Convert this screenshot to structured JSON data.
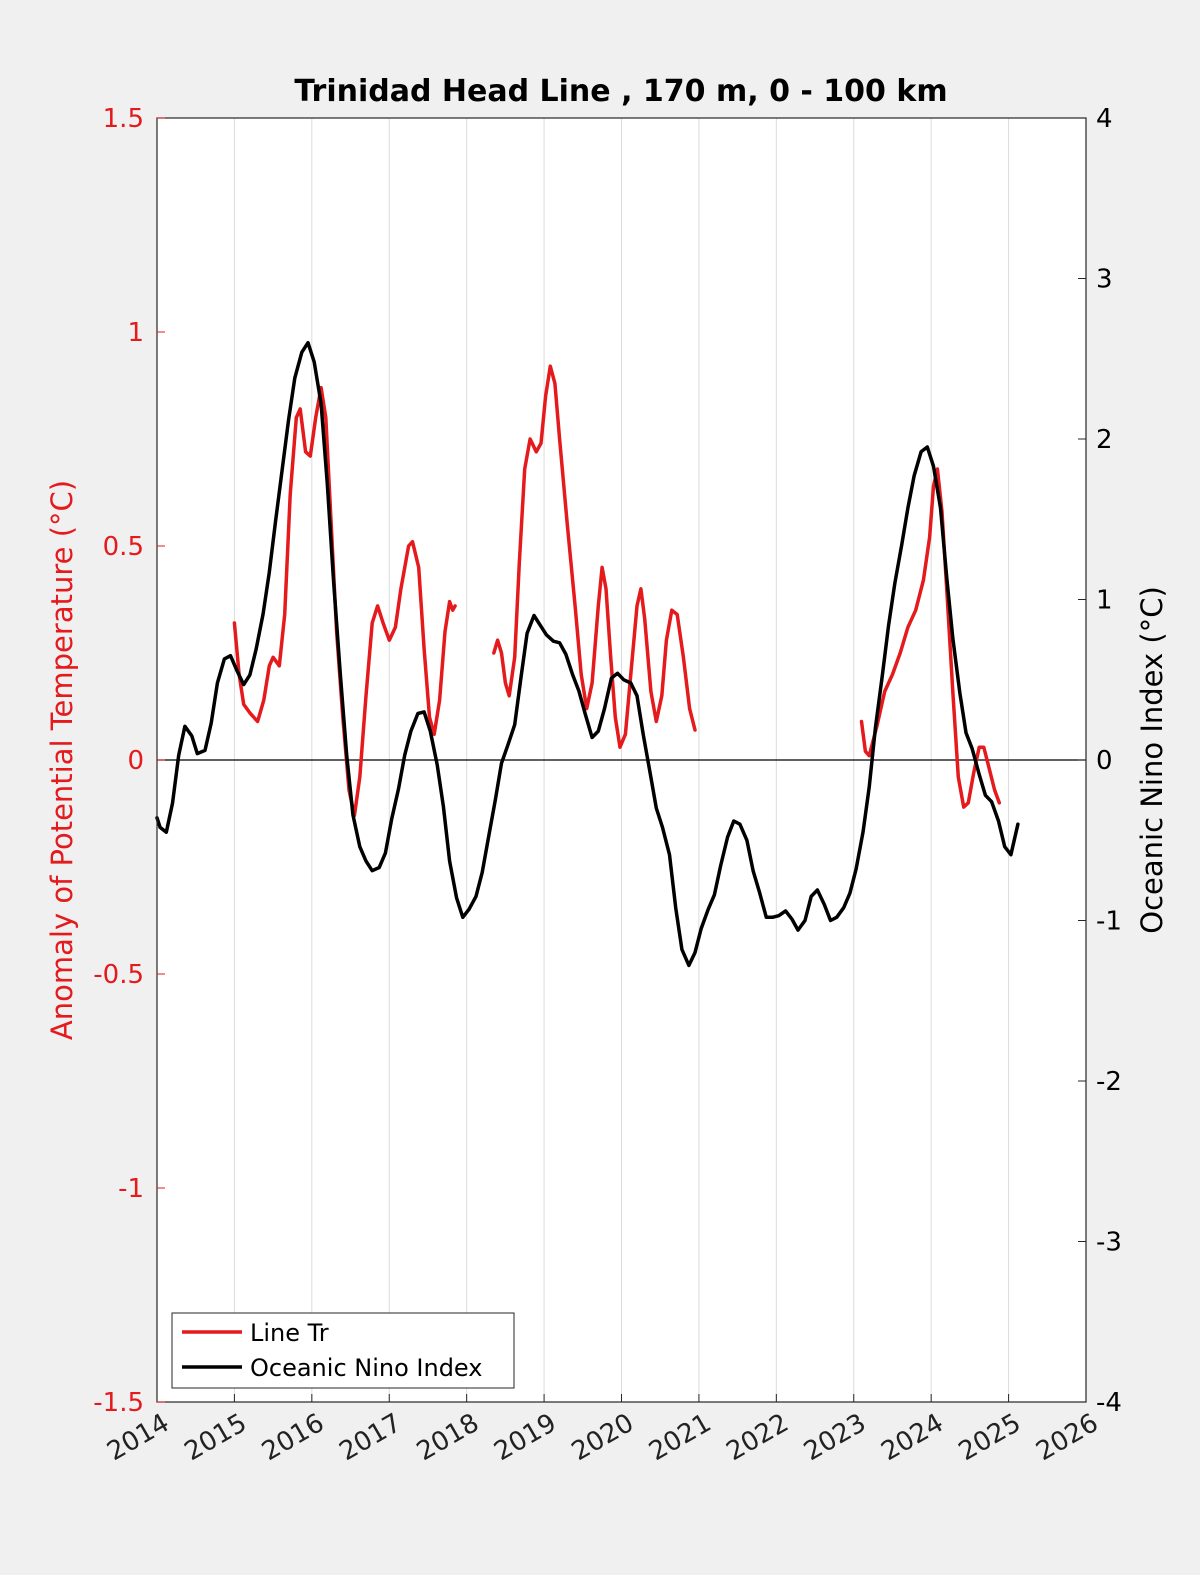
{
  "chart_data": {
    "type": "line",
    "title": "Trinidad Head Line , 170 m, 0 - 100 km",
    "ylabel_left": "Anomaly of Potential Temperature (°C)",
    "ylabel_right": "Oceanic Nino Index (°C)",
    "xlabel": "",
    "xlim": [
      2014,
      2026
    ],
    "ylim_left": [
      -1.5,
      1.5
    ],
    "ylim_right": [
      -4,
      4
    ],
    "x_ticks": [
      "2014",
      "2015",
      "2016",
      "2017",
      "2018",
      "2019",
      "2020",
      "2021",
      "2022",
      "2023",
      "2024",
      "2025",
      "2026"
    ],
    "y_ticks_left": [
      "-1.5",
      "-1",
      "-0.5",
      "0",
      "0.5",
      "1",
      "1.5"
    ],
    "y_ticks_right": [
      "-4",
      "-3",
      "-2",
      "-1",
      "0",
      "1",
      "2",
      "3",
      "4"
    ],
    "grid": "vertical",
    "zero_line": true,
    "legend_position": "bottom-left",
    "colors": {
      "line_tr": "#e41a1c",
      "oni": "#000000",
      "left_axis": "#e41a1c",
      "right_axis": "#000000"
    },
    "series": [
      {
        "name": "Line Tr",
        "axis": "left",
        "segments": [
          [
            [
              2015.0,
              0.32
            ],
            [
              2015.06,
              0.2
            ],
            [
              2015.12,
              0.13
            ],
            [
              2015.2,
              0.11
            ],
            [
              2015.3,
              0.09
            ],
            [
              2015.38,
              0.14
            ],
            [
              2015.45,
              0.22
            ],
            [
              2015.5,
              0.24
            ],
            [
              2015.58,
              0.22
            ],
            [
              2015.65,
              0.34
            ],
            [
              2015.72,
              0.62
            ],
            [
              2015.8,
              0.8
            ],
            [
              2015.85,
              0.82
            ],
            [
              2015.92,
              0.72
            ],
            [
              2015.98,
              0.71
            ],
            [
              2016.05,
              0.8
            ],
            [
              2016.12,
              0.87
            ],
            [
              2016.18,
              0.8
            ],
            [
              2016.25,
              0.55
            ],
            [
              2016.32,
              0.3
            ],
            [
              2016.4,
              0.1
            ],
            [
              2016.48,
              -0.07
            ],
            [
              2016.55,
              -0.13
            ],
            [
              2016.62,
              -0.04
            ],
            [
              2016.7,
              0.15
            ],
            [
              2016.78,
              0.32
            ],
            [
              2016.85,
              0.36
            ],
            [
              2016.92,
              0.32
            ],
            [
              2017.0,
              0.28
            ],
            [
              2017.08,
              0.31
            ],
            [
              2017.15,
              0.4
            ],
            [
              2017.25,
              0.5
            ],
            [
              2017.3,
              0.51
            ],
            [
              2017.38,
              0.45
            ],
            [
              2017.45,
              0.26
            ],
            [
              2017.52,
              0.1
            ],
            [
              2017.58,
              0.06
            ],
            [
              2017.65,
              0.14
            ],
            [
              2017.72,
              0.3
            ],
            [
              2017.78,
              0.37
            ],
            [
              2017.82,
              0.35
            ],
            [
              2017.85,
              0.36
            ]
          ],
          [
            [
              2018.35,
              0.25
            ],
            [
              2018.4,
              0.28
            ],
            [
              2018.45,
              0.25
            ],
            [
              2018.5,
              0.18
            ],
            [
              2018.55,
              0.15
            ],
            [
              2018.62,
              0.24
            ],
            [
              2018.68,
              0.46
            ],
            [
              2018.75,
              0.68
            ],
            [
              2018.82,
              0.75
            ],
            [
              2018.9,
              0.72
            ],
            [
              2018.96,
              0.74
            ],
            [
              2019.02,
              0.85
            ],
            [
              2019.08,
              0.92
            ],
            [
              2019.14,
              0.88
            ],
            [
              2019.2,
              0.75
            ],
            [
              2019.3,
              0.55
            ],
            [
              2019.4,
              0.36
            ],
            [
              2019.48,
              0.2
            ],
            [
              2019.55,
              0.12
            ],
            [
              2019.62,
              0.18
            ],
            [
              2019.7,
              0.36
            ],
            [
              2019.75,
              0.45
            ],
            [
              2019.8,
              0.4
            ],
            [
              2019.86,
              0.24
            ],
            [
              2019.92,
              0.1
            ],
            [
              2019.98,
              0.03
            ],
            [
              2020.05,
              0.06
            ],
            [
              2020.12,
              0.2
            ],
            [
              2020.2,
              0.36
            ],
            [
              2020.25,
              0.4
            ],
            [
              2020.3,
              0.33
            ],
            [
              2020.38,
              0.16
            ],
            [
              2020.45,
              0.09
            ],
            [
              2020.52,
              0.15
            ],
            [
              2020.58,
              0.28
            ],
            [
              2020.65,
              0.35
            ],
            [
              2020.72,
              0.34
            ],
            [
              2020.8,
              0.24
            ],
            [
              2020.88,
              0.12
            ],
            [
              2020.95,
              0.07
            ]
          ],
          [
            [
              2023.1,
              0.09
            ],
            [
              2023.15,
              0.02
            ],
            [
              2023.2,
              0.01
            ],
            [
              2023.3,
              0.08
            ],
            [
              2023.4,
              0.16
            ],
            [
              2023.5,
              0.2
            ],
            [
              2023.6,
              0.25
            ],
            [
              2023.7,
              0.31
            ],
            [
              2023.8,
              0.35
            ],
            [
              2023.9,
              0.42
            ],
            [
              2023.98,
              0.52
            ],
            [
              2024.03,
              0.64
            ],
            [
              2024.08,
              0.68
            ],
            [
              2024.14,
              0.58
            ],
            [
              2024.2,
              0.4
            ],
            [
              2024.28,
              0.16
            ],
            [
              2024.35,
              -0.04
            ],
            [
              2024.42,
              -0.11
            ],
            [
              2024.48,
              -0.1
            ],
            [
              2024.55,
              -0.03
            ],
            [
              2024.62,
              0.03
            ],
            [
              2024.68,
              0.03
            ],
            [
              2024.75,
              -0.02
            ],
            [
              2024.82,
              -0.07
            ],
            [
              2024.88,
              -0.1
            ]
          ]
        ]
      },
      {
        "name": "Oceanic Nino Index",
        "axis": "right",
        "segments": [
          [
            [
              2014.0,
              -0.36
            ],
            [
              2014.04,
              -0.42
            ],
            [
              2014.12,
              -0.45
            ],
            [
              2014.2,
              -0.27
            ],
            [
              2014.28,
              0.03
            ],
            [
              2014.36,
              0.21
            ],
            [
              2014.45,
              0.15
            ],
            [
              2014.52,
              0.04
            ],
            [
              2014.62,
              0.06
            ],
            [
              2014.7,
              0.23
            ],
            [
              2014.78,
              0.48
            ],
            [
              2014.87,
              0.63
            ],
            [
              2014.95,
              0.65
            ],
            [
              2015.03,
              0.56
            ],
            [
              2015.12,
              0.47
            ],
            [
              2015.2,
              0.53
            ],
            [
              2015.28,
              0.69
            ],
            [
              2015.37,
              0.91
            ],
            [
              2015.45,
              1.17
            ],
            [
              2015.53,
              1.48
            ],
            [
              2015.62,
              1.82
            ],
            [
              2015.7,
              2.12
            ],
            [
              2015.78,
              2.38
            ],
            [
              2015.87,
              2.54
            ],
            [
              2015.95,
              2.6
            ],
            [
              2016.03,
              2.48
            ],
            [
              2016.12,
              2.22
            ],
            [
              2016.2,
              1.72
            ],
            [
              2016.28,
              1.12
            ],
            [
              2016.37,
              0.52
            ],
            [
              2016.45,
              0.03
            ],
            [
              2016.53,
              -0.34
            ],
            [
              2016.62,
              -0.54
            ],
            [
              2016.7,
              -0.63
            ],
            [
              2016.78,
              -0.69
            ],
            [
              2016.87,
              -0.67
            ],
            [
              2016.95,
              -0.58
            ],
            [
              2017.03,
              -0.37
            ],
            [
              2017.12,
              -0.18
            ],
            [
              2017.2,
              0.03
            ],
            [
              2017.28,
              0.18
            ],
            [
              2017.37,
              0.29
            ],
            [
              2017.45,
              0.3
            ],
            [
              2017.53,
              0.18
            ],
            [
              2017.62,
              -0.03
            ],
            [
              2017.7,
              -0.29
            ],
            [
              2017.78,
              -0.63
            ],
            [
              2017.87,
              -0.86
            ],
            [
              2017.95,
              -0.98
            ],
            [
              2018.03,
              -0.93
            ],
            [
              2018.12,
              -0.85
            ],
            [
              2018.2,
              -0.7
            ],
            [
              2018.28,
              -0.49
            ],
            [
              2018.37,
              -0.25
            ],
            [
              2018.45,
              -0.02
            ],
            [
              2018.53,
              0.09
            ],
            [
              2018.62,
              0.22
            ],
            [
              2018.7,
              0.51
            ],
            [
              2018.78,
              0.79
            ],
            [
              2018.87,
              0.9
            ],
            [
              2018.95,
              0.84
            ],
            [
              2019.03,
              0.78
            ],
            [
              2019.12,
              0.74
            ],
            [
              2019.2,
              0.73
            ],
            [
              2019.28,
              0.66
            ],
            [
              2019.37,
              0.53
            ],
            [
              2019.45,
              0.43
            ],
            [
              2019.53,
              0.29
            ],
            [
              2019.62,
              0.14
            ],
            [
              2019.7,
              0.18
            ],
            [
              2019.78,
              0.32
            ],
            [
              2019.87,
              0.51
            ],
            [
              2019.95,
              0.54
            ],
            [
              2020.03,
              0.5
            ],
            [
              2020.12,
              0.48
            ],
            [
              2020.2,
              0.4
            ],
            [
              2020.28,
              0.16
            ],
            [
              2020.37,
              -0.08
            ],
            [
              2020.45,
              -0.3
            ],
            [
              2020.53,
              -0.42
            ],
            [
              2020.62,
              -0.59
            ],
            [
              2020.7,
              -0.92
            ],
            [
              2020.78,
              -1.18
            ],
            [
              2020.87,
              -1.28
            ],
            [
              2020.95,
              -1.2
            ],
            [
              2021.03,
              -1.05
            ],
            [
              2021.12,
              -0.93
            ],
            [
              2021.2,
              -0.84
            ],
            [
              2021.28,
              -0.66
            ],
            [
              2021.37,
              -0.48
            ],
            [
              2021.45,
              -0.38
            ],
            [
              2021.53,
              -0.4
            ],
            [
              2021.62,
              -0.5
            ],
            [
              2021.7,
              -0.69
            ],
            [
              2021.78,
              -0.82
            ],
            [
              2021.87,
              -0.98
            ],
            [
              2021.95,
              -0.98
            ],
            [
              2022.03,
              -0.97
            ],
            [
              2022.12,
              -0.94
            ],
            [
              2022.2,
              -0.99
            ],
            [
              2022.28,
              -1.06
            ],
            [
              2022.37,
              -1.0
            ],
            [
              2022.45,
              -0.85
            ],
            [
              2022.53,
              -0.81
            ],
            [
              2022.62,
              -0.9
            ],
            [
              2022.7,
              -1.0
            ],
            [
              2022.78,
              -0.98
            ],
            [
              2022.87,
              -0.92
            ],
            [
              2022.95,
              -0.83
            ],
            [
              2023.03,
              -0.68
            ],
            [
              2023.12,
              -0.45
            ],
            [
              2023.2,
              -0.17
            ],
            [
              2023.28,
              0.2
            ],
            [
              2023.37,
              0.53
            ],
            [
              2023.45,
              0.84
            ],
            [
              2023.53,
              1.1
            ],
            [
              2023.62,
              1.34
            ],
            [
              2023.7,
              1.57
            ],
            [
              2023.78,
              1.77
            ],
            [
              2023.87,
              1.92
            ],
            [
              2023.95,
              1.95
            ],
            [
              2024.03,
              1.83
            ],
            [
              2024.12,
              1.57
            ],
            [
              2024.2,
              1.14
            ],
            [
              2024.28,
              0.76
            ],
            [
              2024.37,
              0.42
            ],
            [
              2024.45,
              0.17
            ],
            [
              2024.53,
              0.07
            ],
            [
              2024.62,
              -0.09
            ],
            [
              2024.7,
              -0.22
            ],
            [
              2024.78,
              -0.26
            ],
            [
              2024.87,
              -0.38
            ],
            [
              2024.95,
              -0.54
            ],
            [
              2025.03,
              -0.59
            ],
            [
              2025.12,
              -0.4
            ]
          ]
        ]
      }
    ]
  }
}
